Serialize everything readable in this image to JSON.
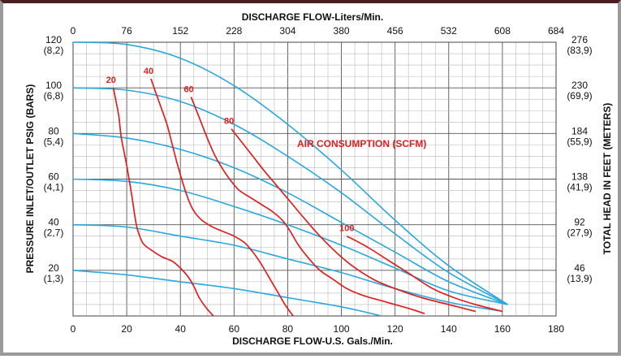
{
  "chart_data": {
    "type": "line",
    "title": "",
    "top_axis": {
      "label": "DISCHARGE FLOW-Liters/Min.",
      "ticks": [
        "0",
        "76",
        "152",
        "228",
        "304",
        "380",
        "456",
        "532",
        "608",
        "684"
      ]
    },
    "bottom_axis": {
      "label": "DISCHARGE FLOW-U.S. Gals./Min.",
      "ticks": [
        "0",
        "20",
        "40",
        "60",
        "80",
        "100",
        "120",
        "140",
        "160",
        "180"
      ],
      "xlim": [
        0,
        180
      ]
    },
    "left_axis": {
      "label": "PRESSURE INLET/OUTLET PSIG (BARS)",
      "ylim": [
        0,
        120
      ],
      "ticks": [
        {
          "value": 120,
          "line1": "120",
          "line2": "(8,2)"
        },
        {
          "value": 100,
          "line1": "100",
          "line2": "(6,8)"
        },
        {
          "value": 80,
          "line1": "80",
          "line2": "(5,4)"
        },
        {
          "value": 60,
          "line1": "60",
          "line2": "(4,1)"
        },
        {
          "value": 40,
          "line1": "40",
          "line2": "(2,7)"
        },
        {
          "value": 20,
          "line1": "20",
          "line2": "(1,3)"
        }
      ]
    },
    "right_axis": {
      "label": "TOTAL HEAD IN FEET (METERS)",
      "ticks": [
        {
          "value": 120,
          "line1": "276",
          "line2": "(83,9)"
        },
        {
          "value": 100,
          "line1": "230",
          "line2": "(69,9)"
        },
        {
          "value": 80,
          "line1": "184",
          "line2": "(55,9)"
        },
        {
          "value": 60,
          "line1": "138",
          "line2": "(41,9)"
        },
        {
          "value": 40,
          "line1": "92",
          "line2": "(27,9)"
        },
        {
          "value": 20,
          "line1": "46",
          "line2": "(13,9)"
        }
      ]
    },
    "grid": true,
    "annotation": "AIR CONSUMPTION (SCFM)",
    "series": [
      {
        "kind": "pressure",
        "color": "#29a8e0",
        "points": [
          [
            0,
            120
          ],
          [
            20,
            119
          ],
          [
            40,
            113
          ],
          [
            60,
            101
          ],
          [
            80,
            84
          ],
          [
            100,
            64
          ],
          [
            120,
            42
          ],
          [
            140,
            22
          ],
          [
            162,
            5
          ]
        ]
      },
      {
        "kind": "pressure",
        "color": "#29a8e0",
        "points": [
          [
            0,
            100
          ],
          [
            20,
            99
          ],
          [
            40,
            94
          ],
          [
            60,
            84
          ],
          [
            80,
            70
          ],
          [
            100,
            54
          ],
          [
            120,
            36
          ],
          [
            140,
            19
          ],
          [
            162,
            5
          ]
        ]
      },
      {
        "kind": "pressure",
        "color": "#29a8e0",
        "points": [
          [
            0,
            80
          ],
          [
            20,
            78
          ],
          [
            40,
            73
          ],
          [
            60,
            65
          ],
          [
            80,
            54
          ],
          [
            100,
            41
          ],
          [
            120,
            28
          ],
          [
            140,
            15
          ],
          [
            162,
            5
          ]
        ]
      },
      {
        "kind": "pressure",
        "color": "#29a8e0",
        "points": [
          [
            0,
            60
          ],
          [
            20,
            59
          ],
          [
            40,
            55
          ],
          [
            60,
            48
          ],
          [
            80,
            40
          ],
          [
            100,
            31
          ],
          [
            120,
            21
          ],
          [
            140,
            11
          ],
          [
            162,
            5
          ]
        ]
      },
      {
        "kind": "pressure",
        "color": "#29a8e0",
        "points": [
          [
            0,
            40
          ],
          [
            20,
            39
          ],
          [
            40,
            35
          ],
          [
            60,
            31
          ],
          [
            80,
            25
          ],
          [
            100,
            19
          ],
          [
            120,
            12
          ],
          [
            140,
            6
          ],
          [
            160,
            2
          ]
        ]
      },
      {
        "kind": "pressure",
        "color": "#29a8e0",
        "points": [
          [
            0,
            20
          ],
          [
            20,
            18
          ],
          [
            40,
            15
          ],
          [
            60,
            12
          ],
          [
            80,
            8
          ],
          [
            100,
            4
          ],
          [
            115,
            0
          ]
        ]
      }
    ],
    "air_curves": [
      {
        "label": "20",
        "color": "#e02020",
        "points": [
          [
            15,
            100
          ],
          [
            17,
            88
          ],
          [
            18,
            78
          ],
          [
            20,
            66
          ],
          [
            22,
            52
          ],
          [
            23,
            44
          ],
          [
            24,
            38
          ],
          [
            26,
            32
          ],
          [
            29,
            29
          ],
          [
            33,
            26
          ],
          [
            37,
            24
          ],
          [
            40,
            21
          ],
          [
            43,
            17
          ],
          [
            45,
            13
          ],
          [
            47,
            8
          ],
          [
            50,
            3
          ],
          [
            54,
            -2
          ]
        ]
      },
      {
        "label": "40",
        "color": "#e02020",
        "points": [
          [
            29,
            104
          ],
          [
            32,
            94
          ],
          [
            35,
            84
          ],
          [
            37,
            75
          ],
          [
            39,
            66
          ],
          [
            41,
            58
          ],
          [
            43,
            51
          ],
          [
            45,
            46
          ],
          [
            48,
            42
          ],
          [
            52,
            39
          ],
          [
            56,
            37
          ],
          [
            60,
            35
          ],
          [
            64,
            32
          ],
          [
            67,
            28
          ],
          [
            70,
            23
          ],
          [
            73,
            17
          ],
          [
            76,
            11
          ],
          [
            79,
            5
          ],
          [
            82,
            0
          ]
        ]
      },
      {
        "label": "60",
        "color": "#e02020",
        "points": [
          [
            44,
            96
          ],
          [
            47,
            87
          ],
          [
            50,
            78
          ],
          [
            53,
            70
          ],
          [
            56,
            64
          ],
          [
            59,
            59
          ],
          [
            62,
            55
          ],
          [
            66,
            52
          ],
          [
            70,
            49
          ],
          [
            74,
            46
          ],
          [
            78,
            42
          ],
          [
            81,
            37
          ],
          [
            84,
            31
          ],
          [
            88,
            25
          ],
          [
            92,
            20
          ],
          [
            97,
            16
          ],
          [
            102,
            12
          ],
          [
            108,
            9
          ],
          [
            114,
            7
          ],
          [
            120,
            5
          ],
          [
            126,
            3
          ],
          [
            131,
            1
          ]
        ]
      },
      {
        "label": "80",
        "color": "#e02020",
        "points": [
          [
            59,
            82
          ],
          [
            63,
            76
          ],
          [
            67,
            70
          ],
          [
            71,
            64
          ],
          [
            76,
            57
          ],
          [
            81,
            50
          ],
          [
            86,
            43
          ],
          [
            92,
            35
          ],
          [
            98,
            28
          ],
          [
            104,
            22
          ],
          [
            112,
            16
          ],
          [
            120,
            12
          ],
          [
            130,
            8
          ],
          [
            140,
            5
          ],
          [
            150,
            2
          ]
        ]
      },
      {
        "label": "100",
        "color": "#e02020",
        "points": [
          [
            102,
            35
          ],
          [
            110,
            30
          ],
          [
            118,
            24
          ],
          [
            126,
            18
          ],
          [
            134,
            12
          ],
          [
            142,
            8
          ],
          [
            150,
            5
          ],
          [
            160,
            2
          ]
        ]
      }
    ]
  }
}
